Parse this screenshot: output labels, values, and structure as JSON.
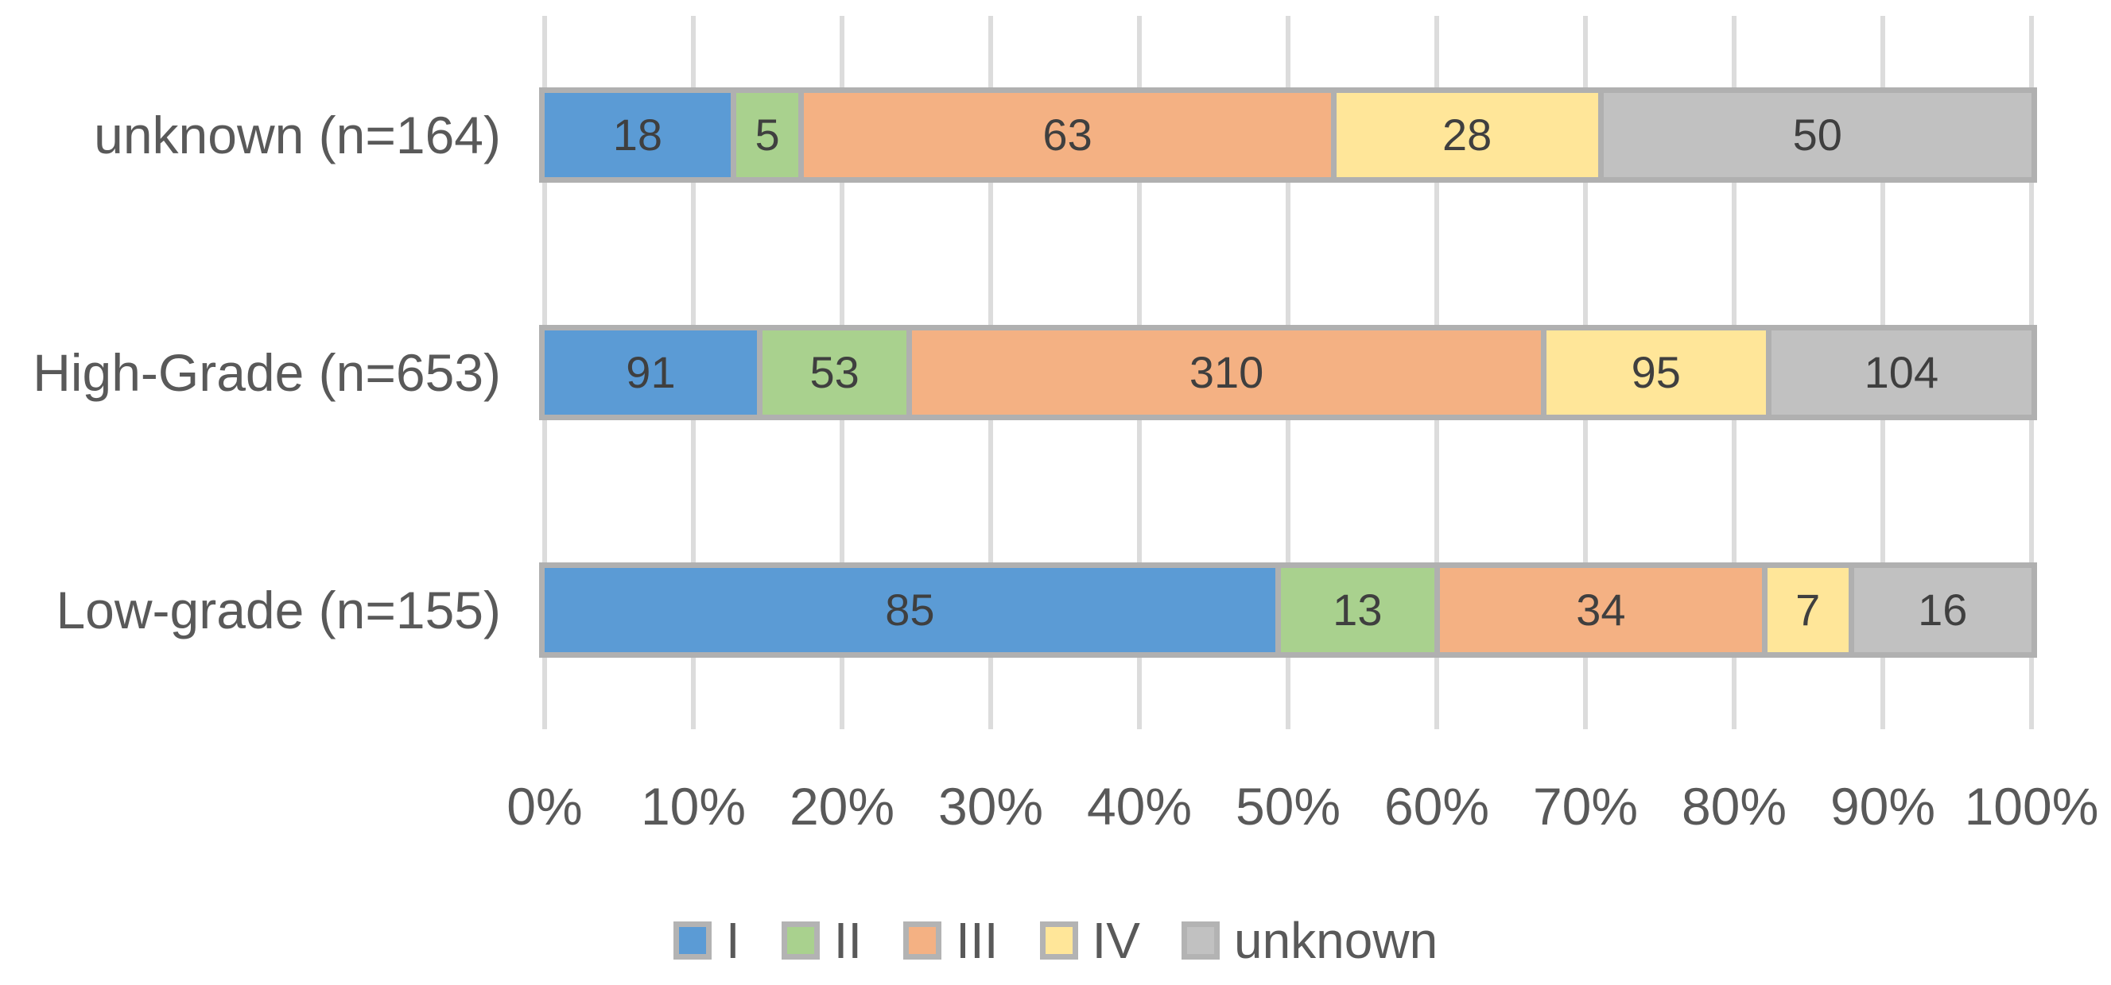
{
  "chart_data": {
    "type": "bar",
    "variant": "stacked-100-percent-horizontal",
    "title": "",
    "categories": [
      "unknown (n=164)",
      "High-Grade (n=653)",
      "Low-grade (n=155)"
    ],
    "category_totals": [
      164,
      653,
      155
    ],
    "series": [
      {
        "name": "I",
        "color": "#5B9BD5",
        "values": [
          18,
          91,
          85
        ]
      },
      {
        "name": "II",
        "color": "#A9D18E",
        "values": [
          5,
          53,
          13
        ]
      },
      {
        "name": "III",
        "color": "#F4B183",
        "values": [
          63,
          310,
          34
        ]
      },
      {
        "name": "IV",
        "color": "#FFE699",
        "values": [
          28,
          95,
          7
        ]
      },
      {
        "name": "unknown",
        "color": "#C1C1C1",
        "values": [
          50,
          104,
          16
        ]
      }
    ],
    "data_labels_shown": true,
    "x_axis": {
      "min": "0%",
      "max": "100%",
      "tick_labels": [
        "0%",
        "10%",
        "20%",
        "30%",
        "40%",
        "50%",
        "60%",
        "70%",
        "80%",
        "90%",
        "100%"
      ],
      "gridlines": true
    },
    "legend": {
      "position": "bottom",
      "entries": [
        "I",
        "II",
        "III",
        "IV",
        "unknown"
      ]
    },
    "colors": {
      "gridline": "#DCDCDC",
      "bar_border": "#B0B0B0",
      "data_label_text": "#3F3F3F",
      "axis_text": "#595959",
      "background": "#FFFFFF"
    }
  }
}
